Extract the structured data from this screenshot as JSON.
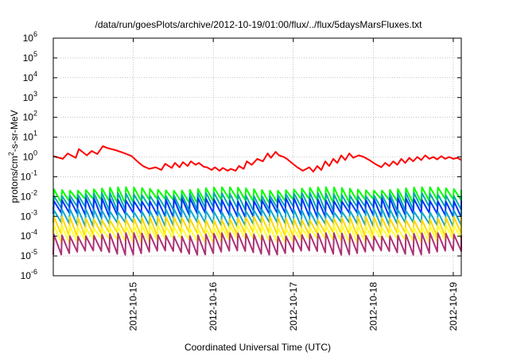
{
  "chart_data": {
    "type": "line",
    "title": "/data/run/goesPlots/archive/2012-10-19/01:00/flux/../flux/5daysMarsFluxes.txt",
    "xlabel": "Coordinated Universal Time (UTC)",
    "ylabel": {
      "base": "protons/cm",
      "sup": "2",
      "rest": "-s-sr-MeV"
    },
    "yscale": "log",
    "ylim_exp": [
      -6,
      6
    ],
    "y_ticks": [
      {
        "base": "10",
        "exp": "6"
      },
      {
        "base": "10",
        "exp": "5"
      },
      {
        "base": "10",
        "exp": "4"
      },
      {
        "base": "10",
        "exp": "3"
      },
      {
        "base": "10",
        "exp": "2"
      },
      {
        "base": "10",
        "exp": "1"
      },
      {
        "base": "10",
        "exp": "0"
      },
      {
        "base": "10",
        "exp": "-1"
      },
      {
        "base": "10",
        "exp": "-2"
      },
      {
        "base": "10",
        "exp": "-3"
      },
      {
        "base": "10",
        "exp": "-4"
      },
      {
        "base": "10",
        "exp": "-5"
      },
      {
        "base": "10",
        "exp": "-6"
      }
    ],
    "x_range_days": [
      14.0,
      19.1
    ],
    "x_ticks": [
      {
        "label": "2012-10-15",
        "day": 15
      },
      {
        "label": "2012-10-16",
        "day": 16
      },
      {
        "label": "2012-10-17",
        "day": 17
      },
      {
        "label": "2012-10-18",
        "day": 18
      },
      {
        "label": "2012-10-19",
        "day": 19
      }
    ],
    "grid": true,
    "legend": "none",
    "series": [
      {
        "color": "#ff0000",
        "width": 2,
        "x": [
          14.0,
          14.12,
          14.18,
          14.28,
          14.32,
          14.42,
          14.48,
          14.55,
          14.62,
          14.68,
          14.78,
          14.88,
          14.98,
          15.05,
          15.12,
          15.2,
          15.28,
          15.35,
          15.4,
          15.48,
          15.52,
          15.58,
          15.62,
          15.68,
          15.72,
          15.78,
          15.82,
          15.88,
          15.92,
          15.98,
          16.02,
          16.08,
          16.12,
          16.18,
          16.22,
          16.28,
          16.32,
          16.38,
          16.42,
          16.48,
          16.55,
          16.62,
          16.68,
          16.72,
          16.78,
          16.82,
          16.88,
          16.92,
          16.98,
          17.05,
          17.12,
          17.2,
          17.25,
          17.3,
          17.35,
          17.4,
          17.45,
          17.5,
          17.55,
          17.6,
          17.65,
          17.7,
          17.75,
          17.82,
          17.88,
          17.95,
          18.02,
          18.1,
          18.15,
          18.2,
          18.25,
          18.3,
          18.35,
          18.4,
          18.45,
          18.5,
          18.55,
          18.6,
          18.65,
          18.7,
          18.75,
          18.8,
          18.85,
          18.9,
          18.95,
          19.0,
          19.05,
          19.1
        ],
        "y": [
          1.1,
          0.8,
          1.5,
          0.9,
          2.5,
          1.2,
          2.0,
          1.4,
          3.5,
          2.8,
          2.2,
          1.6,
          1.1,
          0.6,
          0.35,
          0.25,
          0.3,
          0.22,
          0.45,
          0.28,
          0.5,
          0.3,
          0.55,
          0.35,
          0.6,
          0.4,
          0.5,
          0.32,
          0.3,
          0.22,
          0.3,
          0.2,
          0.28,
          0.2,
          0.25,
          0.2,
          0.35,
          0.25,
          0.6,
          0.4,
          0.8,
          0.6,
          1.5,
          0.9,
          1.8,
          1.2,
          1.0,
          0.8,
          0.5,
          0.3,
          0.2,
          0.3,
          0.18,
          0.35,
          0.22,
          0.6,
          0.35,
          0.8,
          0.5,
          1.2,
          0.7,
          1.5,
          0.9,
          1.2,
          1.0,
          0.7,
          0.45,
          0.3,
          0.5,
          0.35,
          0.6,
          0.4,
          0.8,
          0.5,
          0.9,
          0.6,
          1.0,
          0.7,
          1.2,
          0.8,
          1.0,
          0.75,
          1.1,
          0.8,
          1.0,
          0.8,
          0.9,
          0.7
        ]
      },
      {
        "color": "#00ff00",
        "width": 2,
        "y_top": 0.025,
        "y_bottom": 0.006
      },
      {
        "color": "#00aaaa",
        "width": 2,
        "y_top": 0.013,
        "y_bottom": 0.0025
      },
      {
        "color": "#0033ff",
        "width": 2,
        "y_top": 0.007,
        "y_bottom": 0.0012
      },
      {
        "color": "#11aacc",
        "width": 2,
        "y_top": 0.002,
        "y_bottom": 0.0004
      },
      {
        "color": "#ffd700",
        "width": 2,
        "y_top": 0.0008,
        "y_bottom": 0.00012
      },
      {
        "color": "#ffff33",
        "width": 2,
        "y_top": 0.0003,
        "y_bottom": 6e-05
      },
      {
        "color": "#aa3377",
        "width": 2,
        "y_top": 0.00012,
        "y_bottom": 1.5e-05
      }
    ],
    "cycle_period_days": 0.1,
    "frame_color": "#000000",
    "grid_color": "#999999"
  }
}
